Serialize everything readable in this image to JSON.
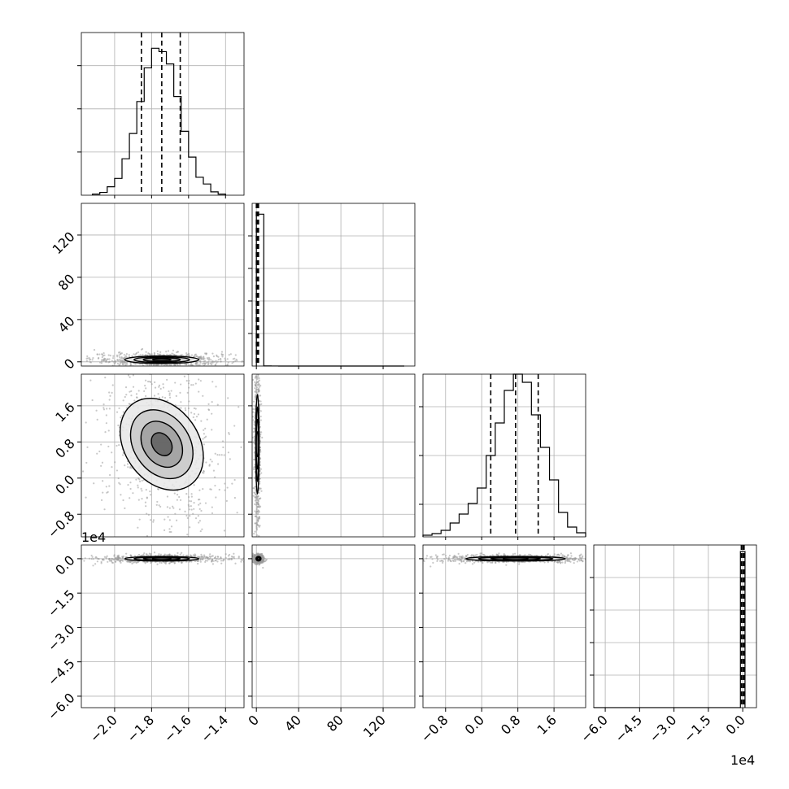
{
  "chart_data": {
    "type": "corner",
    "grid": true,
    "scale_offsets": {
      "row3_y": "1e4",
      "col3_x": "1e4"
    },
    "variables": [
      {
        "range": [
          -2.18,
          -1.3
        ],
        "ticks": [
          -2.0,
          -1.8,
          -1.6,
          -1.4
        ],
        "tick_labels": [
          "−2.0",
          "−1.8",
          "−1.6",
          "−1.4"
        ]
      },
      {
        "range": [
          -4,
          150
        ],
        "ticks": [
          0,
          40,
          80,
          120
        ],
        "tick_labels": [
          "0",
          "40",
          "80",
          "120"
        ]
      },
      {
        "range": [
          -1.3,
          2.3
        ],
        "ticks": [
          -0.8,
          0.0,
          0.8,
          1.6
        ],
        "tick_labels": [
          "−0.8",
          "0.0",
          "0.8",
          "1.6"
        ]
      },
      {
        "range": [
          -6.5,
          0.6
        ],
        "ticks": [
          -6.0,
          -4.5,
          -3.0,
          -1.5,
          0.0
        ],
        "tick_labels": [
          "−6.0",
          "−4.5",
          "−3.0",
          "−1.5",
          "0.0"
        ]
      }
    ],
    "diagonals": [
      {
        "quantiles": [
          -1.855,
          -1.745,
          -1.645
        ],
        "bins": [
          -2.12,
          -2.08,
          -2.04,
          -2.0,
          -1.96,
          -1.92,
          -1.88,
          -1.84,
          -1.8,
          -1.76,
          -1.72,
          -1.68,
          -1.64,
          -1.6,
          -1.56,
          -1.52,
          -1.48,
          -1.44,
          -1.4
        ],
        "counts": [
          2,
          5,
          15,
          30,
          65,
          110,
          167,
          227,
          262,
          256,
          234,
          176,
          114,
          68,
          32,
          20,
          6,
          2
        ],
        "ymax": 290,
        "yticks": [
          77,
          154,
          231
        ]
      },
      {
        "quantiles": [
          0,
          1,
          2
        ],
        "bins": [
          0,
          7,
          14,
          21,
          28,
          35,
          42,
          49,
          56,
          63,
          70,
          77,
          84,
          91,
          98,
          105,
          112,
          119,
          126,
          133,
          140
        ],
        "counts": [
          2800,
          2,
          1,
          0,
          0,
          0,
          0,
          0,
          0,
          0,
          0,
          0,
          0,
          0,
          0,
          0,
          0,
          0,
          0,
          0
        ],
        "ymax": 3000,
        "yticks": [
          600,
          1200,
          1800,
          2400
        ]
      },
      {
        "quantiles": [
          0.2,
          0.75,
          1.25
        ],
        "bins": [
          -1.3,
          -1.1,
          -0.9,
          -0.7,
          -0.5,
          -0.3,
          -0.1,
          0.1,
          0.3,
          0.5,
          0.7,
          0.9,
          1.1,
          1.3,
          1.5,
          1.7,
          1.9,
          2.1,
          2.3
        ],
        "counts": [
          2,
          4,
          8,
          17,
          28,
          41,
          60,
          100,
          140,
          180,
          200,
          190,
          150,
          110,
          70,
          30,
          12,
          5
        ],
        "ymax": 200,
        "yticks": [
          40,
          100,
          160
        ]
      },
      {
        "quantiles": [
          -0.06,
          0.0,
          0.06
        ],
        "bins": [
          -6.5,
          -6.1,
          -5.7,
          -5.3,
          -4.9,
          -4.5,
          -4.1,
          -3.7,
          -3.3,
          -2.9,
          -2.5,
          -2.1,
          -1.7,
          -1.3,
          -0.9,
          -0.5,
          -0.1,
          0.1
        ],
        "counts": [
          1,
          1,
          1,
          1,
          1,
          1,
          1,
          1,
          1,
          1,
          1,
          1,
          1,
          1,
          1,
          1,
          4800
        ],
        "ymax": 5000,
        "yticks": [
          1000,
          2000,
          3000,
          4000
        ]
      }
    ],
    "panels_2d": [
      {
        "row": 1,
        "col": 0,
        "center": [
          -1.745,
          2
        ],
        "spread": [
          0.1,
          1.8
        ],
        "tilt": 0
      },
      {
        "row": 2,
        "col": 0,
        "center": [
          -1.745,
          0.75
        ],
        "spread": [
          0.1,
          0.55
        ],
        "tilt": -0.35
      },
      {
        "row": 2,
        "col": 1,
        "center": [
          1,
          0.75
        ],
        "spread": [
          0.8,
          0.55
        ],
        "tilt": 0
      },
      {
        "row": 3,
        "col": 0,
        "center": [
          -1.745,
          0.0
        ],
        "spread": [
          0.1,
          0.05
        ],
        "tilt": 0
      },
      {
        "row": 3,
        "col": 1,
        "center": [
          2,
          0.0
        ],
        "spread": [
          1.2,
          0.05
        ],
        "tilt": 0
      },
      {
        "row": 3,
        "col": 2,
        "center": [
          0.75,
          0.0
        ],
        "spread": [
          0.55,
          0.05
        ],
        "tilt": 0
      }
    ]
  }
}
